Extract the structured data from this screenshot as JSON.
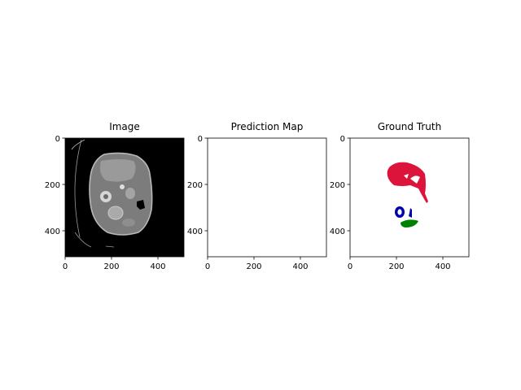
{
  "figure": {
    "background": "#ffffff",
    "panels": [
      {
        "title": "Image",
        "content": "ct-slice",
        "xticks": [
          "0",
          "200",
          "400"
        ],
        "yticks": [
          "0",
          "200",
          "400"
        ]
      },
      {
        "title": "Prediction Map",
        "content": "empty",
        "xticks": [
          "0",
          "200",
          "400"
        ],
        "yticks": [
          "0",
          "200",
          "400"
        ]
      },
      {
        "title": "Ground Truth",
        "content": "segmentation-mask",
        "xticks": [
          "0",
          "200",
          "400"
        ],
        "yticks": [
          "0",
          "200",
          "400"
        ]
      }
    ],
    "colors": {
      "liver": "#dc143c",
      "kidney": "#0000aa",
      "spleen": "#008000",
      "ct_background": "#000000"
    }
  }
}
